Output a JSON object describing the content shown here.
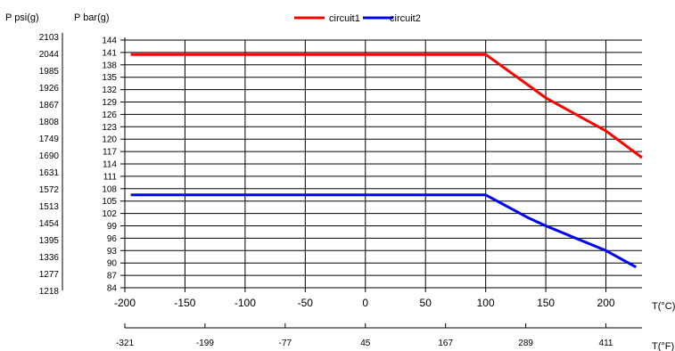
{
  "units": {
    "psi": "P psi(g)",
    "bar": "P bar(g)",
    "celsius": "T(°C)",
    "fahrenheit": "T(°F)"
  },
  "psi_ticks": [
    "2103",
    "2044",
    "1985",
    "1926",
    "1867",
    "1808",
    "1749",
    "1690",
    "1631",
    "1572",
    "1513",
    "1454",
    "1395",
    "1336",
    "1277",
    "1218"
  ],
  "fahrenheit_ticks": [
    "-321",
    "-199",
    "-77",
    "45",
    "167",
    "289",
    "411"
  ],
  "chart_data": {
    "type": "line",
    "xlabel": "T(°C)",
    "ylabel": "P bar(g)",
    "xlim": [
      -200,
      230
    ],
    "ylim": [
      84,
      144
    ],
    "x_ticks": [
      -200,
      -150,
      -100,
      -50,
      0,
      50,
      100,
      150,
      200
    ],
    "y_ticks": [
      144,
      141,
      138,
      135,
      132,
      129,
      126,
      123,
      120,
      117,
      114,
      111,
      108,
      105,
      102,
      99,
      96,
      93,
      90,
      87,
      84
    ],
    "grid": true,
    "legend_position": "top-center",
    "series": [
      {
        "name": "circuit1",
        "color": "#ff0000",
        "x": [
          -195,
          100,
          150,
          200,
          230
        ],
        "y": [
          140.5,
          140.5,
          130,
          122,
          115.5
        ]
      },
      {
        "name": "circuit2",
        "color": "#0000ff",
        "x": [
          -195,
          100,
          135,
          150,
          200,
          225
        ],
        "y": [
          106.5,
          106.5,
          101,
          99,
          93,
          89
        ]
      }
    ]
  }
}
